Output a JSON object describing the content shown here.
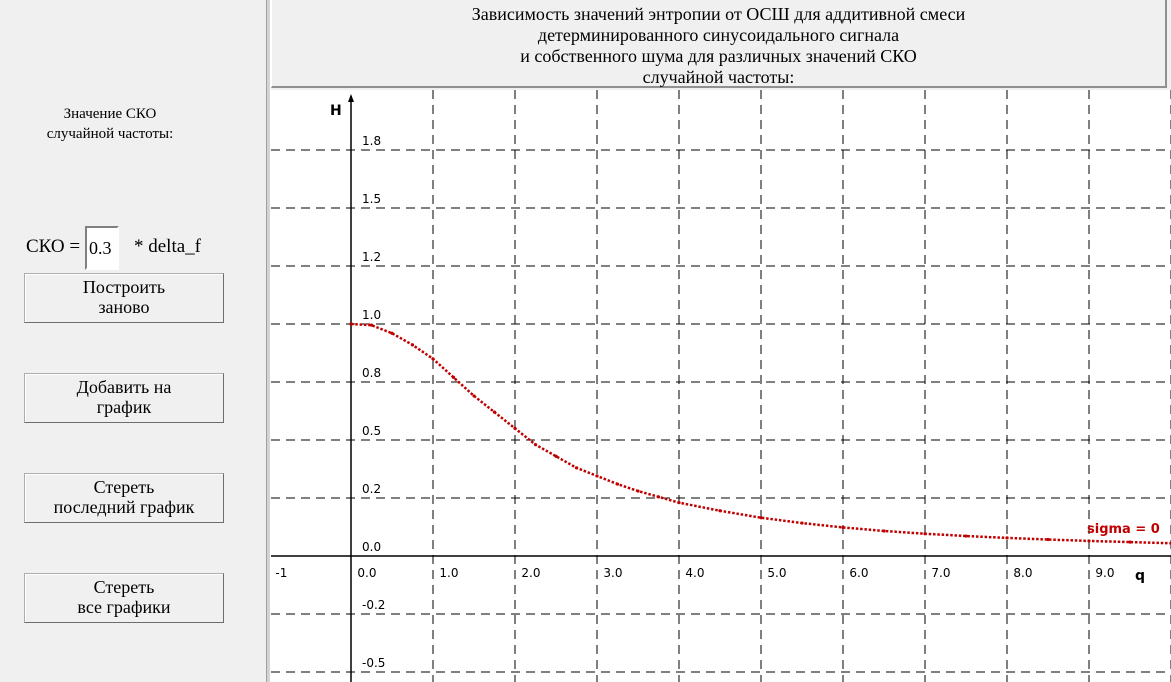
{
  "left_panel": {
    "sko_label_line1": "Значение СКО",
    "sko_label_line2": "случайной частоты:",
    "sko_prefix": "СКО =",
    "sko_value": "0.3",
    "sko_suffix": "* delta_f",
    "buttons": {
      "rebuild": "Построить\nзаново",
      "add": "Добавить на\nграфик",
      "erase_last": "Стереть\nпоследний график",
      "erase_all": "Стереть\nвсе графики"
    }
  },
  "chart_data": {
    "type": "line",
    "title_lines": [
      "Зависимость значений энтропии от ОСШ для аддитивной смеси",
      "детерминированного синусоидального сигнала",
      "и собственного шума для различных значений СКО",
      "случайной частоты:"
    ],
    "xlabel": "q",
    "ylabel": "H",
    "x_tick_labels": [
      "-1",
      "0.0",
      "1.0",
      "2.0",
      "3.0",
      "4.0",
      "5.0",
      "6.0",
      "7.0",
      "8.0",
      "9.0"
    ],
    "y_tick_labels": [
      "1.8",
      "1.5",
      "1.2",
      "1.0",
      "0.8",
      "0.5",
      "0.2",
      "0.0",
      "-0.2",
      "-0.5"
    ],
    "xlim": [
      -1,
      10
    ],
    "ylim": [
      -0.6,
      2.0
    ],
    "grid": true,
    "grid_style": "dashed",
    "colors": {
      "series": "#c00000",
      "axis": "#000000",
      "grid": "#000000"
    },
    "series": [
      {
        "name": "sigma = 0",
        "x": [
          0,
          0.25,
          0.5,
          0.75,
          1.0,
          1.25,
          1.5,
          1.75,
          2.0,
          2.25,
          2.5,
          2.75,
          3.0,
          3.25,
          3.5,
          3.75,
          4.0,
          4.5,
          5.0,
          5.5,
          6.0,
          6.5,
          7.0,
          7.5,
          8.0,
          8.5,
          9.0,
          9.5,
          10.0
        ],
        "y": [
          1.0,
          0.995,
          0.96,
          0.91,
          0.85,
          0.77,
          0.69,
          0.62,
          0.55,
          0.48,
          0.43,
          0.38,
          0.345,
          0.31,
          0.28,
          0.255,
          0.23,
          0.195,
          0.165,
          0.142,
          0.123,
          0.108,
          0.096,
          0.086,
          0.078,
          0.071,
          0.065,
          0.06,
          0.055
        ]
      }
    ]
  }
}
